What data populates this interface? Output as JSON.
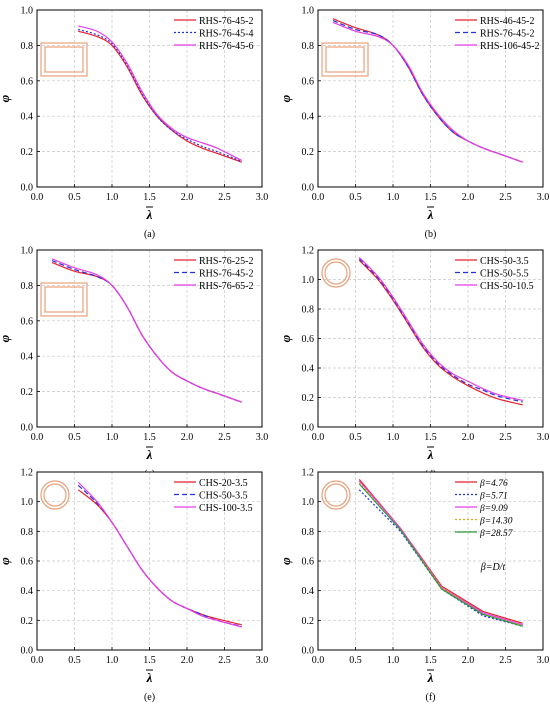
{
  "chart_data": [
    {
      "type": "line",
      "panel_label": "(a)",
      "xlabel": "λ",
      "ylabel": "φ",
      "xlim": [
        0.0,
        3.0
      ],
      "ylim": [
        0.0,
        1.0
      ],
      "xticks": [
        "0.0",
        "0.5",
        "1.0",
        "1.5",
        "2.0",
        "2.5",
        "3.0"
      ],
      "yticks": [
        "0.0",
        "0.2",
        "0.4",
        "0.6",
        "0.8",
        "1.0"
      ],
      "grid": true,
      "legend_position": "top-right",
      "inset": "rhs",
      "series": [
        {
          "name": "RHS-76-45-2",
          "color": "#e8212e",
          "dash": "solid",
          "x": [
            0.55,
            0.8,
            1.0,
            1.2,
            1.4,
            1.6,
            1.8,
            2.0,
            2.2,
            2.4,
            2.73
          ],
          "y": [
            0.88,
            0.85,
            0.8,
            0.68,
            0.52,
            0.4,
            0.32,
            0.26,
            0.22,
            0.19,
            0.14
          ]
        },
        {
          "name": "RHS-76-45-4",
          "color": "#2233dd",
          "dash": "dot",
          "x": [
            0.55,
            0.8,
            1.0,
            1.2,
            1.4,
            1.6,
            1.8,
            2.0,
            2.2,
            2.4,
            2.73
          ],
          "y": [
            0.89,
            0.86,
            0.81,
            0.69,
            0.53,
            0.4,
            0.32,
            0.27,
            0.23,
            0.2,
            0.145
          ]
        },
        {
          "name": "RHS-76-45-6",
          "color": "#e53ee8",
          "dash": "solid",
          "x": [
            0.55,
            0.8,
            1.0,
            1.2,
            1.4,
            1.6,
            1.8,
            2.0,
            2.2,
            2.4,
            2.73
          ],
          "y": [
            0.91,
            0.88,
            0.82,
            0.7,
            0.54,
            0.41,
            0.33,
            0.28,
            0.25,
            0.22,
            0.15
          ]
        }
      ]
    },
    {
      "type": "line",
      "panel_label": "(b)",
      "xlabel": "λ",
      "ylabel": "φ",
      "xlim": [
        0.0,
        3.0
      ],
      "ylim": [
        0.0,
        1.0
      ],
      "xticks": [
        "0.0",
        "0.5",
        "1.0",
        "1.5",
        "2.0",
        "2.5",
        "3.0"
      ],
      "yticks": [
        "0.0",
        "0.2",
        "0.4",
        "0.6",
        "0.8",
        "1.0"
      ],
      "grid": true,
      "legend_position": "top-right",
      "inset": "rhs",
      "series": [
        {
          "name": "RHS-46-45-2",
          "color": "#e8212e",
          "dash": "solid",
          "x": [
            0.2,
            0.5,
            0.8,
            1.0,
            1.2,
            1.4,
            1.6,
            1.8,
            2.0,
            2.2,
            2.4,
            2.73
          ],
          "y": [
            0.95,
            0.9,
            0.86,
            0.8,
            0.68,
            0.52,
            0.4,
            0.31,
            0.26,
            0.22,
            0.19,
            0.14
          ]
        },
        {
          "name": "RHS-76-45-2",
          "color": "#2233dd",
          "dash": "dash",
          "x": [
            0.2,
            0.5,
            0.8,
            1.0,
            1.2,
            1.4,
            1.6,
            1.8,
            2.0,
            2.2,
            2.4,
            2.73
          ],
          "y": [
            0.94,
            0.89,
            0.86,
            0.8,
            0.68,
            0.52,
            0.4,
            0.31,
            0.26,
            0.22,
            0.19,
            0.14
          ]
        },
        {
          "name": "RHS-106-45-2",
          "color": "#e53ee8",
          "dash": "solid",
          "x": [
            0.2,
            0.5,
            0.8,
            1.0,
            1.2,
            1.4,
            1.6,
            1.8,
            2.0,
            2.2,
            2.4,
            2.73
          ],
          "y": [
            0.93,
            0.88,
            0.85,
            0.8,
            0.69,
            0.53,
            0.41,
            0.32,
            0.26,
            0.22,
            0.19,
            0.14
          ]
        }
      ]
    },
    {
      "type": "line",
      "panel_label": "(c)",
      "xlabel": "λ",
      "ylabel": "φ",
      "xlim": [
        0.0,
        3.0
      ],
      "ylim": [
        0.0,
        1.0
      ],
      "xticks": [
        "0.0",
        "0.5",
        "1.0",
        "1.5",
        "2.0",
        "2.5",
        "3.0"
      ],
      "yticks": [
        "0.0",
        "0.2",
        "0.4",
        "0.6",
        "0.8",
        "1.0"
      ],
      "grid": true,
      "legend_position": "top-right",
      "inset": "rhs",
      "series": [
        {
          "name": "RHS-76-25-2",
          "color": "#e8212e",
          "dash": "solid",
          "x": [
            0.2,
            0.5,
            0.8,
            1.0,
            1.2,
            1.4,
            1.6,
            1.8,
            2.0,
            2.2,
            2.4,
            2.73
          ],
          "y": [
            0.93,
            0.88,
            0.85,
            0.8,
            0.68,
            0.52,
            0.4,
            0.31,
            0.26,
            0.22,
            0.19,
            0.14
          ]
        },
        {
          "name": "RHS-76-45-2",
          "color": "#2233dd",
          "dash": "dash",
          "x": [
            0.2,
            0.5,
            0.8,
            1.0,
            1.2,
            1.4,
            1.6,
            1.8,
            2.0,
            2.2,
            2.4,
            2.73
          ],
          "y": [
            0.94,
            0.89,
            0.85,
            0.8,
            0.68,
            0.52,
            0.4,
            0.31,
            0.26,
            0.22,
            0.19,
            0.14
          ]
        },
        {
          "name": "RHS-76-65-2",
          "color": "#e53ee8",
          "dash": "solid",
          "x": [
            0.2,
            0.5,
            0.8,
            1.0,
            1.2,
            1.4,
            1.6,
            1.8,
            2.0,
            2.2,
            2.4,
            2.73
          ],
          "y": [
            0.95,
            0.9,
            0.86,
            0.8,
            0.68,
            0.52,
            0.4,
            0.31,
            0.26,
            0.22,
            0.19,
            0.14
          ]
        }
      ]
    },
    {
      "type": "line",
      "panel_label": "(d)",
      "xlabel": "λ",
      "ylabel": "φ",
      "xlim": [
        0.0,
        3.0
      ],
      "ylim": [
        0.0,
        1.2
      ],
      "xticks": [
        "0.0",
        "0.5",
        "1.0",
        "1.5",
        "2.0",
        "2.5",
        "3.0"
      ],
      "yticks": [
        "0.0",
        "0.2",
        "0.4",
        "0.6",
        "0.8",
        "1.0",
        "1.2"
      ],
      "grid": true,
      "legend_position": "top-right",
      "inset": "chs",
      "series": [
        {
          "name": "CHS-50-3.5",
          "color": "#e8212e",
          "dash": "solid",
          "x": [
            0.55,
            0.8,
            1.0,
            1.2,
            1.4,
            1.6,
            1.8,
            2.0,
            2.2,
            2.4,
            2.73
          ],
          "y": [
            1.13,
            1.0,
            0.86,
            0.7,
            0.54,
            0.42,
            0.34,
            0.28,
            0.23,
            0.19,
            0.15
          ]
        },
        {
          "name": "CHS-50-5.5",
          "color": "#2233dd",
          "dash": "dash",
          "x": [
            0.55,
            0.8,
            1.0,
            1.2,
            1.4,
            1.6,
            1.8,
            2.0,
            2.2,
            2.4,
            2.73
          ],
          "y": [
            1.14,
            1.01,
            0.87,
            0.71,
            0.55,
            0.43,
            0.35,
            0.29,
            0.25,
            0.21,
            0.17
          ]
        },
        {
          "name": "CHS-50-10.5",
          "color": "#e53ee8",
          "dash": "solid",
          "x": [
            0.55,
            0.8,
            1.0,
            1.2,
            1.4,
            1.6,
            1.8,
            2.0,
            2.2,
            2.4,
            2.73
          ],
          "y": [
            1.15,
            1.02,
            0.88,
            0.72,
            0.56,
            0.44,
            0.36,
            0.31,
            0.26,
            0.22,
            0.18
          ]
        }
      ]
    },
    {
      "type": "line",
      "panel_label": "(e)",
      "xlabel": "λ",
      "ylabel": "φ",
      "xlim": [
        0.0,
        3.0
      ],
      "ylim": [
        0.0,
        1.2
      ],
      "xticks": [
        "0.0",
        "0.5",
        "1.0",
        "1.5",
        "2.0",
        "2.5",
        "3.0"
      ],
      "yticks": [
        "0.0",
        "0.2",
        "0.4",
        "0.6",
        "0.8",
        "1.0",
        "1.2"
      ],
      "grid": true,
      "legend_position": "top-right",
      "inset": "chs",
      "series": [
        {
          "name": "CHS-20-3.5",
          "color": "#e8212e",
          "dash": "solid",
          "x": [
            0.55,
            0.8,
            1.0,
            1.2,
            1.4,
            1.6,
            1.8,
            2.0,
            2.2,
            2.4,
            2.73
          ],
          "y": [
            1.08,
            0.98,
            0.86,
            0.7,
            0.54,
            0.42,
            0.33,
            0.28,
            0.24,
            0.21,
            0.17
          ]
        },
        {
          "name": "CHS-50-3.5",
          "color": "#2233dd",
          "dash": "dash",
          "x": [
            0.55,
            0.8,
            1.0,
            1.2,
            1.4,
            1.6,
            1.8,
            2.0,
            2.2,
            2.4,
            2.73
          ],
          "y": [
            1.11,
            0.99,
            0.86,
            0.7,
            0.54,
            0.42,
            0.33,
            0.28,
            0.24,
            0.2,
            0.16
          ]
        },
        {
          "name": "CHS-100-3.5",
          "color": "#e53ee8",
          "dash": "solid",
          "x": [
            0.55,
            0.8,
            1.0,
            1.2,
            1.4,
            1.6,
            1.8,
            2.0,
            2.2,
            2.4,
            2.73
          ],
          "y": [
            1.13,
            1.0,
            0.86,
            0.7,
            0.54,
            0.42,
            0.33,
            0.28,
            0.23,
            0.2,
            0.155
          ]
        }
      ]
    },
    {
      "type": "line",
      "panel_label": "(f)",
      "xlabel": "λ",
      "ylabel": "φ",
      "xlim": [
        0.0,
        3.0
      ],
      "ylim": [
        0.0,
        1.2
      ],
      "xticks": [
        "0.0",
        "0.5",
        "1.0",
        "1.5",
        "2.0",
        "2.5",
        "3.0"
      ],
      "yticks": [
        "0.0",
        "0.2",
        "0.4",
        "0.6",
        "0.8",
        "1.0",
        "1.2"
      ],
      "grid": true,
      "legend_position": "top-right",
      "inset": "chs",
      "annotation": "β=D/t",
      "series": [
        {
          "name": "β=4.76",
          "color": "#e8212e",
          "dash": "solid",
          "x": [
            0.55,
            1.1,
            1.65,
            2.2,
            2.73
          ],
          "y": [
            1.15,
            0.82,
            0.43,
            0.26,
            0.18
          ]
        },
        {
          "name": "β=5.71",
          "color": "#2233dd",
          "dash": "dot",
          "x": [
            0.55,
            1.1,
            1.65,
            2.2,
            2.73
          ],
          "y": [
            1.08,
            0.8,
            0.41,
            0.23,
            0.16
          ]
        },
        {
          "name": "β=9.09",
          "color": "#e53ee8",
          "dash": "solid",
          "x": [
            0.55,
            1.1,
            1.65,
            2.2,
            2.73
          ],
          "y": [
            1.14,
            0.82,
            0.42,
            0.25,
            0.17
          ]
        },
        {
          "name": "β=14.30",
          "color": "#e8a317",
          "dash": "dot",
          "x": [
            0.55,
            1.1,
            1.65,
            2.2,
            2.73
          ],
          "y": [
            1.13,
            0.81,
            0.42,
            0.24,
            0.165
          ]
        },
        {
          "name": "β=28.57",
          "color": "#2a9a3a",
          "dash": "solid",
          "x": [
            0.55,
            1.1,
            1.65,
            2.2,
            2.73
          ],
          "y": [
            1.12,
            0.81,
            0.41,
            0.24,
            0.16
          ]
        }
      ]
    }
  ],
  "colors": {
    "inset_stroke": "#e8a07a",
    "grid": "#c8c8c8",
    "axis": "#000000"
  }
}
